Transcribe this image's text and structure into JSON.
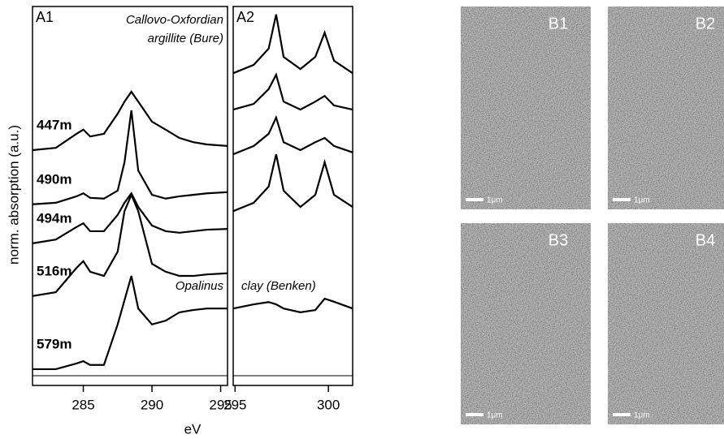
{
  "chart_data": [
    {
      "type": "line",
      "panel": "A1",
      "annotations": [
        "Callovo-Oxfordian",
        "argillite (Bure)",
        "Opalinus"
      ],
      "ylabel": "norm. absorption (a.u.)",
      "xlabel": "eV",
      "x": [
        281.3,
        283,
        284.5,
        285,
        285.5,
        286.5,
        287.5,
        288,
        288.5,
        289,
        290,
        291,
        292,
        293,
        294,
        295.5
      ],
      "xlim": [
        281.3,
        295.5
      ],
      "xticks": [
        285,
        290,
        295
      ],
      "ylim": [
        0,
        10
      ],
      "color": "#000000",
      "series": [
        {
          "name": "447m",
          "values": [
            6.21,
            6.27,
            6.64,
            6.75,
            6.57,
            6.64,
            7.17,
            7.49,
            7.75,
            7.49,
            6.96,
            6.75,
            6.53,
            6.42,
            6.36,
            6.32
          ]
        },
        {
          "name": "490m",
          "values": [
            4.78,
            4.82,
            4.99,
            5.07,
            4.95,
            4.93,
            5.14,
            5.89,
            7.26,
            5.67,
            5.03,
            4.93,
            4.99,
            5.03,
            5.07,
            5.1
          ]
        },
        {
          "name": "494m",
          "values": [
            3.75,
            3.85,
            4.18,
            4.28,
            4.07,
            4.07,
            4.5,
            4.82,
            5.07,
            4.71,
            4.22,
            4.07,
            4.03,
            4.07,
            4.11,
            4.13
          ]
        },
        {
          "name": "516m",
          "values": [
            2.36,
            2.46,
            3.1,
            3.28,
            3.0,
            2.89,
            3.53,
            4.6,
            5.03,
            4.6,
            3.21,
            3.0,
            2.89,
            2.89,
            2.93,
            2.96
          ]
        },
        {
          "name": "579m",
          "values": [
            0.43,
            0.43,
            0.58,
            0.64,
            0.54,
            0.54,
            1.61,
            2.25,
            2.89,
            2.03,
            1.61,
            1.71,
            1.93,
            1.99,
            2.03,
            2.03
          ]
        }
      ]
    },
    {
      "type": "line",
      "panel": "A2",
      "annotations": [
        "clay (Benken)"
      ],
      "x": [
        294.9,
        296,
        296.8,
        297.2,
        297.6,
        298.5,
        299.3,
        299.8,
        300.3,
        301.3
      ],
      "xlim": [
        294.9,
        301.3
      ],
      "xticks": [
        295,
        300
      ],
      "ylim": [
        0,
        10
      ],
      "color": "#000000",
      "series": [
        {
          "values": [
            8.24,
            8.46,
            8.89,
            9.79,
            8.67,
            8.35,
            8.67,
            9.31,
            8.57,
            8.24
          ]
        },
        {
          "values": [
            7.28,
            7.43,
            7.82,
            8.2,
            7.49,
            7.28,
            7.49,
            7.64,
            7.39,
            7.28
          ]
        },
        {
          "values": [
            6.1,
            6.32,
            6.64,
            7.07,
            6.42,
            6.21,
            6.42,
            6.53,
            6.32,
            6.15
          ]
        },
        {
          "values": [
            4.6,
            4.82,
            5.25,
            6.1,
            5.14,
            4.71,
            5.03,
            5.89,
            5.03,
            4.71
          ]
        },
        {
          "values": [
            2.03,
            2.14,
            2.2,
            2.14,
            2.03,
            1.93,
            1.99,
            2.29,
            2.21,
            2.03
          ]
        }
      ]
    }
  ],
  "images": [
    {
      "label": "B1",
      "scale_label": "1μm"
    },
    {
      "label": "B2",
      "scale_label": "1μm"
    },
    {
      "label": "B3",
      "scale_label": "1μm"
    },
    {
      "label": "B4",
      "scale_label": "1μm"
    }
  ]
}
